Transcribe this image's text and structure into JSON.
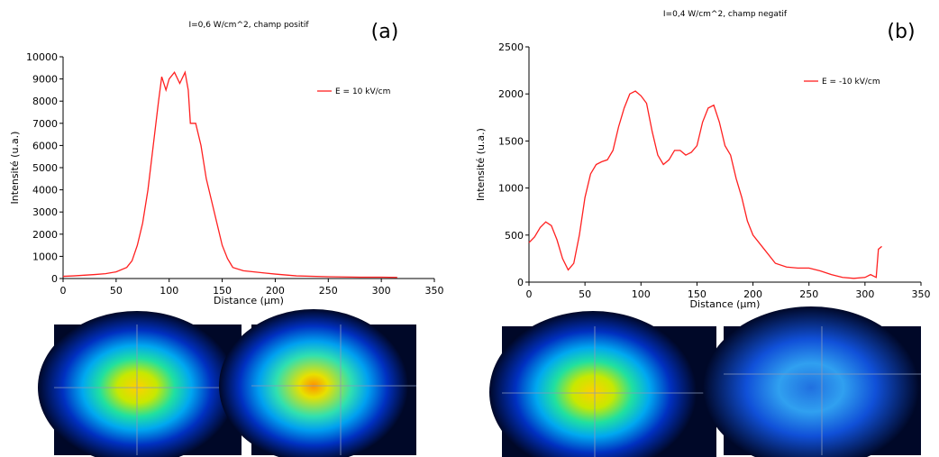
{
  "chart_data": [
    {
      "type": "line",
      "title": "I=0,6 W/cm^2, champ positif",
      "panel_label": "(a)",
      "x_label": "Distance (µm)",
      "y_label": "Intensité (u.a.)",
      "legend": "upper right",
      "xlim": [
        0,
        350
      ],
      "xticks": [
        0,
        50,
        100,
        150,
        200,
        250,
        300,
        350
      ],
      "ylim": [
        0,
        10000
      ],
      "yticks": [
        0,
        1000,
        2000,
        3000,
        4000,
        5000,
        6000,
        7000,
        8000,
        9000,
        10000
      ],
      "series": [
        {
          "name": "E = 10 kV/cm",
          "color": "#ff2020",
          "x": [
            0,
            10,
            20,
            30,
            40,
            50,
            60,
            65,
            70,
            75,
            80,
            85,
            90,
            93,
            97,
            100,
            105,
            110,
            115,
            118,
            120,
            125,
            130,
            135,
            140,
            145,
            150,
            155,
            160,
            170,
            180,
            190,
            200,
            220,
            250,
            280,
            300,
            315
          ],
          "values": [
            100,
            120,
            150,
            180,
            220,
            300,
            500,
            800,
            1500,
            2500,
            4000,
            6000,
            8000,
            9100,
            8500,
            9000,
            9300,
            8800,
            9300,
            8500,
            7000,
            7000,
            6000,
            4500,
            3500,
            2500,
            1500,
            900,
            500,
            350,
            300,
            250,
            200,
            120,
            80,
            60,
            60,
            50
          ]
        }
      ]
    },
    {
      "type": "line",
      "title": "I=0,4 W/cm^2, champ negatif",
      "panel_label": "(b)",
      "x_label": "Distance (µm)",
      "y_label": "Intensité (u.a.)",
      "legend": "upper right",
      "xlim": [
        0,
        350
      ],
      "xticks": [
        0,
        50,
        100,
        150,
        200,
        250,
        300,
        350
      ],
      "ylim": [
        0,
        2500
      ],
      "yticks": [
        0,
        500,
        1000,
        1500,
        2000,
        2500
      ],
      "series": [
        {
          "name": "E = -10 kV/cm",
          "color": "#ff2020",
          "x": [
            0,
            5,
            10,
            15,
            20,
            25,
            30,
            35,
            40,
            45,
            50,
            55,
            60,
            65,
            70,
            75,
            80,
            85,
            90,
            95,
            100,
            105,
            110,
            115,
            120,
            125,
            130,
            135,
            140,
            145,
            150,
            155,
            160,
            165,
            170,
            175,
            180,
            185,
            190,
            195,
            200,
            210,
            220,
            230,
            240,
            250,
            260,
            270,
            280,
            290,
            300,
            305,
            310,
            312,
            315
          ],
          "values": [
            420,
            480,
            580,
            640,
            600,
            450,
            250,
            130,
            200,
            500,
            900,
            1150,
            1250,
            1280,
            1300,
            1400,
            1650,
            1850,
            2000,
            2030,
            1980,
            1900,
            1600,
            1350,
            1250,
            1300,
            1400,
            1400,
            1350,
            1380,
            1450,
            1700,
            1850,
            1880,
            1700,
            1450,
            1350,
            1100,
            900,
            650,
            500,
            350,
            200,
            160,
            150,
            150,
            120,
            80,
            50,
            40,
            50,
            80,
            50,
            350,
            380
          ]
        }
      ]
    }
  ]
}
